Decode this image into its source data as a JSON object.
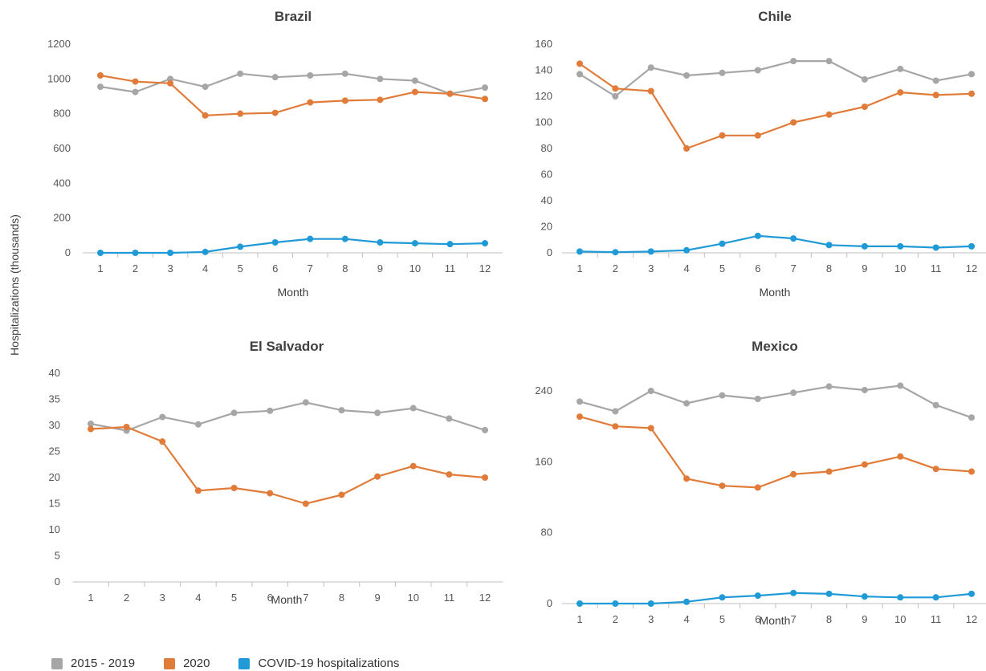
{
  "y_axis_title": "Hospitalizations (thousands)",
  "legend": [
    {
      "label": "2015 - 2019",
      "color": "#a6a6a6"
    },
    {
      "label": "2020",
      "color": "#e07b39"
    },
    {
      "label": "COVID-19 hospitalizations",
      "color": "#1f9ad6"
    }
  ],
  "chart_data": [
    {
      "type": "line",
      "title": "Brazil",
      "xlabel": "Month",
      "x": [
        1,
        2,
        3,
        4,
        5,
        6,
        7,
        8,
        9,
        10,
        11,
        12
      ],
      "ylim": [
        0,
        1200
      ],
      "yticks": [
        0,
        200,
        400,
        600,
        800,
        1000,
        1200
      ],
      "series": [
        {
          "name": "2015 - 2019",
          "color": "#a6a6a6",
          "values": [
            955,
            925,
            1000,
            955,
            1030,
            1010,
            1020,
            1030,
            1000,
            990,
            915,
            950
          ]
        },
        {
          "name": "2020",
          "color": "#e07b39",
          "values": [
            1020,
            985,
            975,
            790,
            800,
            805,
            865,
            875,
            880,
            925,
            915,
            885
          ]
        },
        {
          "name": "COVID-19 hospitalizations",
          "color": "#1f9ad6",
          "values": [
            0,
            0,
            0,
            5,
            35,
            60,
            80,
            80,
            60,
            55,
            50,
            55
          ]
        }
      ]
    },
    {
      "type": "line",
      "title": "Chile",
      "xlabel": "Month",
      "x": [
        1,
        2,
        3,
        4,
        5,
        6,
        7,
        8,
        9,
        10,
        11,
        12
      ],
      "ylim": [
        0,
        160
      ],
      "yticks": [
        0,
        20,
        40,
        60,
        80,
        100,
        120,
        140,
        160
      ],
      "series": [
        {
          "name": "2015 - 2019",
          "color": "#a6a6a6",
          "values": [
            137,
            120,
            142,
            136,
            138,
            140,
            147,
            147,
            133,
            141,
            132,
            137
          ]
        },
        {
          "name": "2020",
          "color": "#e07b39",
          "values": [
            145,
            126,
            124,
            80,
            90,
            90,
            100,
            106,
            112,
            123,
            121,
            122
          ]
        },
        {
          "name": "COVID-19 hospitalizations",
          "color": "#1f9ad6",
          "values": [
            1,
            0.5,
            1,
            2,
            7,
            13,
            11,
            6,
            5,
            5,
            4,
            5
          ]
        }
      ]
    },
    {
      "type": "line",
      "title": "El Salvador",
      "xlabel": "Month",
      "x": [
        1,
        2,
        3,
        4,
        5,
        6,
        7,
        8,
        9,
        10,
        11,
        12
      ],
      "ylim": [
        0,
        40
      ],
      "yticks": [
        0,
        5,
        10,
        15,
        20,
        25,
        30,
        35,
        40
      ],
      "series": [
        {
          "name": "2015 - 2019",
          "color": "#a6a6a6",
          "values": [
            30.3,
            29.0,
            31.6,
            30.2,
            32.4,
            32.8,
            34.4,
            32.9,
            32.4,
            33.3,
            31.3,
            29.1
          ]
        },
        {
          "name": "2020",
          "color": "#e07b39",
          "values": [
            29.3,
            29.7,
            26.9,
            17.5,
            18.0,
            17.0,
            15.0,
            16.7,
            20.2,
            22.2,
            20.6,
            20.0
          ]
        }
      ]
    },
    {
      "type": "line",
      "title": "Mexico",
      "xlabel": "Month",
      "x": [
        1,
        2,
        3,
        4,
        5,
        6,
        7,
        8,
        9,
        10,
        11,
        12
      ],
      "ylim": [
        0,
        260
      ],
      "yticks": [
        0,
        80,
        160,
        240
      ],
      "series": [
        {
          "name": "2015 - 2019",
          "color": "#a6a6a6",
          "values": [
            228,
            217,
            240,
            226,
            235,
            231,
            238,
            245,
            241,
            246,
            224,
            210
          ]
        },
        {
          "name": "2020",
          "color": "#e07b39",
          "values": [
            211,
            200,
            198,
            141,
            133,
            131,
            146,
            149,
            157,
            166,
            152,
            149
          ]
        },
        {
          "name": "COVID-19 hospitalizations",
          "color": "#1f9ad6",
          "values": [
            0,
            0,
            0,
            2,
            7,
            9,
            12,
            11,
            8,
            7,
            7,
            11
          ]
        }
      ]
    }
  ]
}
